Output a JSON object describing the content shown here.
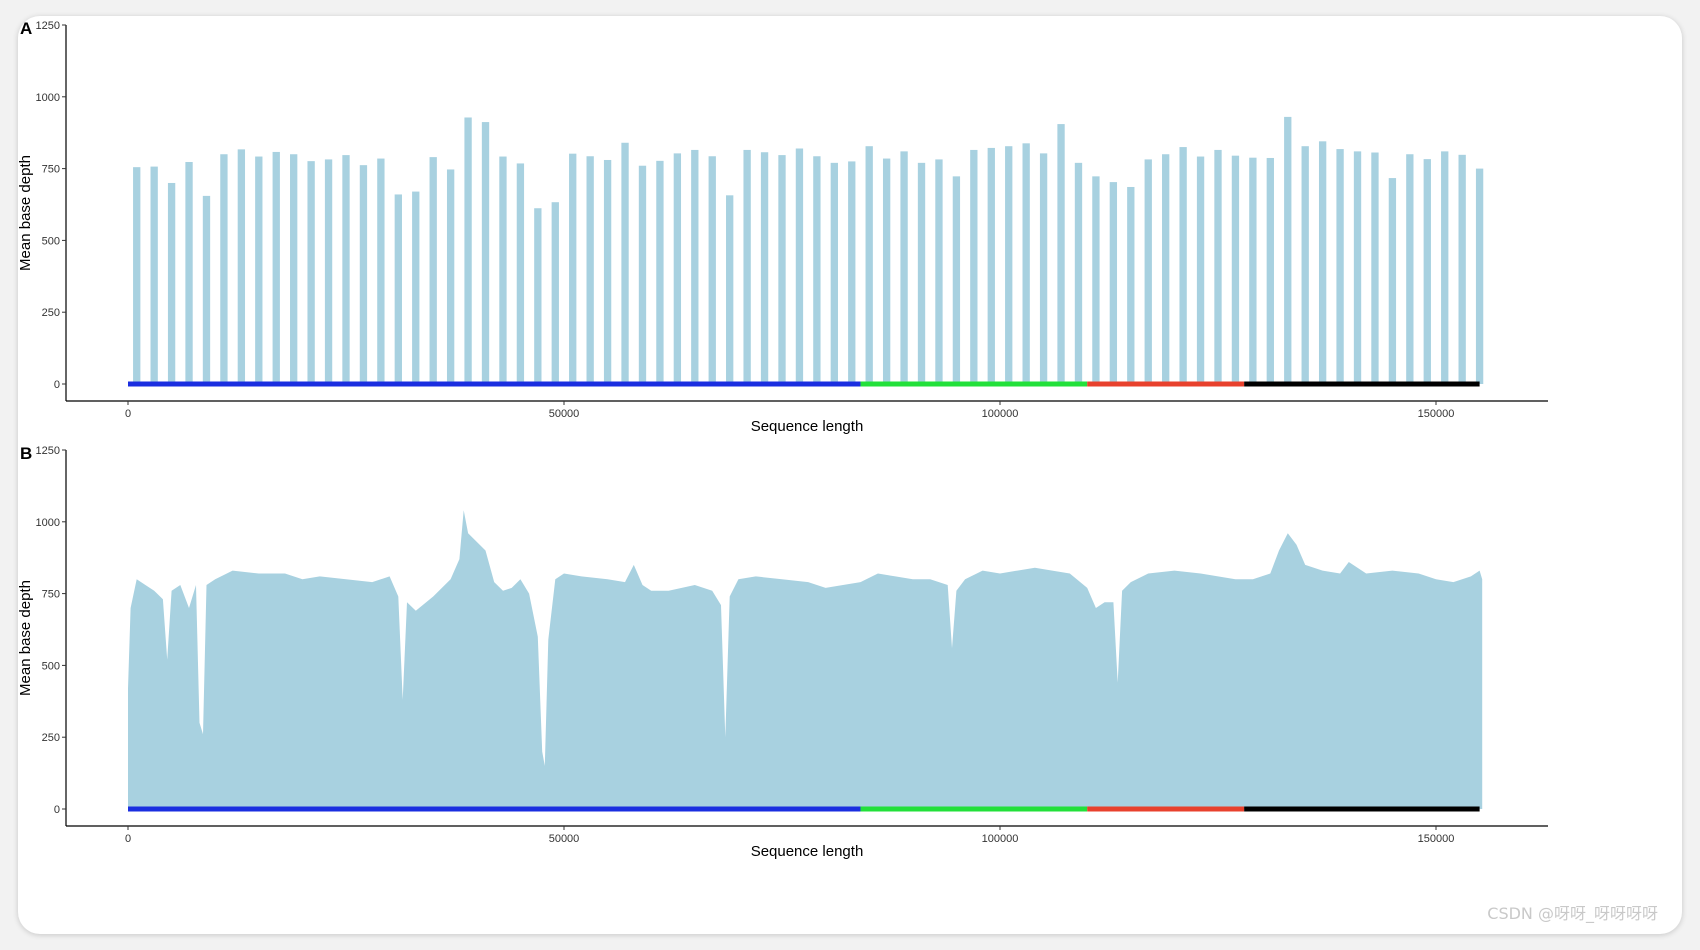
{
  "colors": {
    "fill": "#a8d1e0",
    "axis": "#000000",
    "regions": [
      "#1a2ee0",
      "#22e03a",
      "#e8412d",
      "#000000"
    ]
  },
  "watermark": "CSDN @呀呀_呀呀呀呀",
  "chart_data": [
    {
      "type": "bar",
      "panel_label": "A",
      "xlabel": "Sequence length",
      "ylabel": "Mean base depth",
      "xlim": [
        -1000,
        157000
      ],
      "ylim": [
        0,
        1250
      ],
      "xticks": [
        0,
        50000,
        100000,
        150000
      ],
      "yticks": [
        0,
        250,
        500,
        750,
        1000,
        1250
      ],
      "bin_width": 2000,
      "x": [
        1000,
        3000,
        5000,
        7000,
        9000,
        11000,
        13000,
        15000,
        17000,
        19000,
        21000,
        23000,
        25000,
        27000,
        29000,
        31000,
        33000,
        35000,
        37000,
        39000,
        41000,
        43000,
        45000,
        47000,
        49000,
        51000,
        53000,
        55000,
        57000,
        59000,
        61000,
        63000,
        65000,
        67000,
        69000,
        71000,
        73000,
        75000,
        77000,
        79000,
        81000,
        83000,
        85000,
        87000,
        89000,
        91000,
        93000,
        95000,
        97000,
        99000,
        101000,
        103000,
        105000,
        107000,
        109000,
        111000,
        113000,
        115000,
        117000,
        119000,
        121000,
        123000,
        125000,
        127000,
        129000,
        131000,
        133000,
        135000,
        137000,
        139000,
        141000,
        143000,
        145000,
        147000,
        149000,
        151000,
        153000,
        155000
      ],
      "values": [
        755,
        757,
        700,
        773,
        655,
        800,
        817,
        792,
        808,
        800,
        776,
        782,
        797,
        762,
        785,
        660,
        670,
        790,
        747,
        928,
        912,
        792,
        768,
        612,
        633,
        802,
        793,
        780,
        840,
        760,
        777,
        803,
        815,
        793,
        657,
        815,
        807,
        797,
        820,
        793,
        770,
        775,
        828,
        785,
        810,
        770,
        782,
        723,
        815,
        822,
        828,
        838,
        803,
        905,
        770,
        723,
        703,
        686,
        782,
        800,
        825,
        792,
        815,
        795,
        788,
        787,
        930,
        828,
        845,
        818,
        810,
        806,
        717,
        800,
        783,
        810,
        798,
        750
      ],
      "regions": [
        {
          "start": 0,
          "end": 84000
        },
        {
          "start": 84000,
          "end": 110000
        },
        {
          "start": 110000,
          "end": 128000
        },
        {
          "start": 128000,
          "end": 155000
        }
      ]
    },
    {
      "type": "area",
      "panel_label": "B",
      "xlabel": "Sequence length",
      "ylabel": "Mean base depth",
      "xlim": [
        -1000,
        157000
      ],
      "ylim": [
        0,
        1250
      ],
      "xticks": [
        0,
        50000,
        100000,
        150000
      ],
      "yticks": [
        0,
        250,
        500,
        750,
        1000,
        1250
      ],
      "x": [
        0,
        300,
        1000,
        2000,
        3000,
        4000,
        4500,
        5000,
        6000,
        7000,
        7800,
        8200,
        8600,
        9000,
        10000,
        12000,
        15000,
        18000,
        20000,
        22000,
        25000,
        28000,
        30000,
        31000,
        31500,
        32000,
        33000,
        35000,
        37000,
        38000,
        38500,
        39000,
        40000,
        41000,
        42000,
        43000,
        44000,
        45000,
        46000,
        47000,
        47500,
        47800,
        48200,
        49000,
        50000,
        52000,
        55000,
        57000,
        58000,
        59000,
        60000,
        62000,
        65000,
        67000,
        68000,
        68500,
        69000,
        70000,
        72000,
        75000,
        78000,
        80000,
        82000,
        84000,
        86000,
        88000,
        90000,
        92000,
        94000,
        94500,
        95000,
        96000,
        98000,
        100000,
        102000,
        104000,
        106000,
        108000,
        110000,
        111000,
        112000,
        113000,
        113500,
        114000,
        115000,
        117000,
        120000,
        123000,
        125000,
        127000,
        129000,
        131000,
        132000,
        133000,
        134000,
        135000,
        137000,
        139000,
        140000,
        142000,
        145000,
        148000,
        150000,
        152000,
        154000,
        155000,
        155300
      ],
      "values": [
        420,
        700,
        800,
        780,
        760,
        730,
        520,
        760,
        780,
        700,
        780,
        300,
        260,
        780,
        800,
        830,
        820,
        820,
        800,
        810,
        800,
        790,
        810,
        740,
        380,
        720,
        690,
        740,
        800,
        870,
        1040,
        960,
        930,
        900,
        790,
        760,
        770,
        800,
        750,
        600,
        200,
        150,
        590,
        800,
        820,
        810,
        800,
        790,
        850,
        780,
        760,
        760,
        780,
        760,
        710,
        250,
        740,
        800,
        810,
        800,
        790,
        770,
        780,
        790,
        820,
        810,
        800,
        800,
        780,
        560,
        760,
        800,
        830,
        820,
        830,
        840,
        830,
        820,
        770,
        700,
        720,
        720,
        440,
        760,
        790,
        820,
        830,
        820,
        810,
        800,
        800,
        820,
        900,
        960,
        920,
        850,
        830,
        820,
        860,
        820,
        830,
        820,
        800,
        790,
        810,
        830,
        800
      ],
      "regions": [
        {
          "start": 0,
          "end": 84000
        },
        {
          "start": 84000,
          "end": 110000
        },
        {
          "start": 110000,
          "end": 128000
        },
        {
          "start": 128000,
          "end": 155000
        }
      ]
    }
  ]
}
